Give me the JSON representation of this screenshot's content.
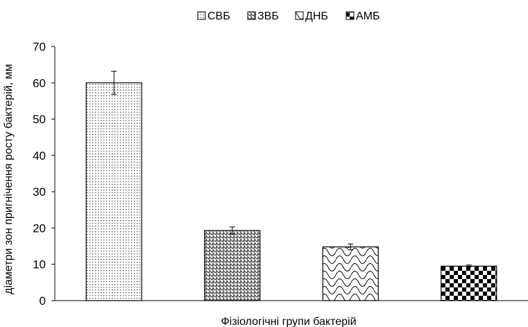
{
  "chart_data": {
    "type": "bar",
    "categories": [
      "СВБ",
      "ЗВБ",
      "ДНБ",
      "АМБ"
    ],
    "values": [
      60,
      19.3,
      14.8,
      9.5
    ],
    "errors": [
      3.2,
      1.0,
      0.8,
      0.3
    ],
    "xlabel": "Фізіологічні групи бактерій",
    "ylabel": "діаметри зон пригнічення росту бактерій, мм",
    "ylim": [
      0,
      70
    ],
    "yticks": [
      0,
      10,
      20,
      30,
      40,
      50,
      60,
      70
    ],
    "legend": {
      "position": "top",
      "entries": [
        "СВБ",
        "ЗВБ",
        "ДНБ",
        "АМБ"
      ]
    },
    "patterns": [
      "dots",
      "zigzag-weave",
      "scallop",
      "checker"
    ],
    "grid": false
  }
}
